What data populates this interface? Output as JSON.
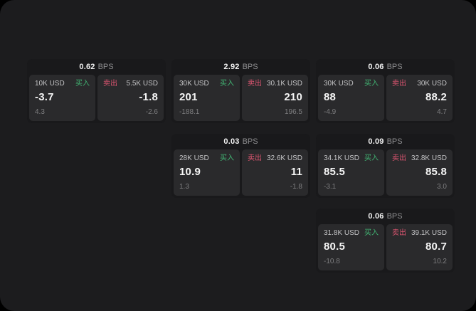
{
  "labels": {
    "bps_unit": "BPS",
    "buy": "买入",
    "sell": "卖出"
  },
  "colors": {
    "background_outside": "#000000",
    "window_bg": "#1c1c1e",
    "card_bg": "#19191b",
    "panel_bg": "#2a2a2c",
    "buy_green": "#41b573",
    "sell_red": "#dc5570",
    "primary_text": "#f5f5f5",
    "amount_text": "#c3c3c5",
    "muted_text": "#7d7d7f",
    "bps_unit_text": "#8e8e90"
  },
  "cards": [
    {
      "bps": "0.62",
      "col": "1",
      "row": "1",
      "buy": {
        "amount": "10K USD",
        "price": "-3.7",
        "delta": "4.3"
      },
      "sell": {
        "amount": "5.5K USD",
        "price": "-1.8",
        "delta": "-2.6"
      }
    },
    {
      "bps": "2.92",
      "col": "2",
      "row": "1",
      "buy": {
        "amount": "30K USD",
        "price": "201",
        "delta": "-188.1"
      },
      "sell": {
        "amount": "30.1K USD",
        "price": "210",
        "delta": "196.5"
      }
    },
    {
      "bps": "0.06",
      "col": "3",
      "row": "1",
      "buy": {
        "amount": "30K USD",
        "price": "88",
        "delta": "-4.9"
      },
      "sell": {
        "amount": "30K USD",
        "price": "88.2",
        "delta": "4.7"
      }
    },
    {
      "bps": "0.03",
      "col": "2",
      "row": "2",
      "buy": {
        "amount": "28K USD",
        "price": "10.9",
        "delta": "1.3"
      },
      "sell": {
        "amount": "32.6K USD",
        "price": "11",
        "delta": "-1.8"
      }
    },
    {
      "bps": "0.09",
      "col": "3",
      "row": "2",
      "buy": {
        "amount": "34.1K USD",
        "price": "85.5",
        "delta": "-3.1"
      },
      "sell": {
        "amount": "32.8K USD",
        "price": "85.8",
        "delta": "3.0"
      }
    },
    {
      "bps": "0.06",
      "col": "3",
      "row": "3",
      "buy": {
        "amount": "31.8K USD",
        "price": "80.5",
        "delta": "-10.8"
      },
      "sell": {
        "amount": "39.1K USD",
        "price": "80.7",
        "delta": "10.2"
      }
    }
  ]
}
